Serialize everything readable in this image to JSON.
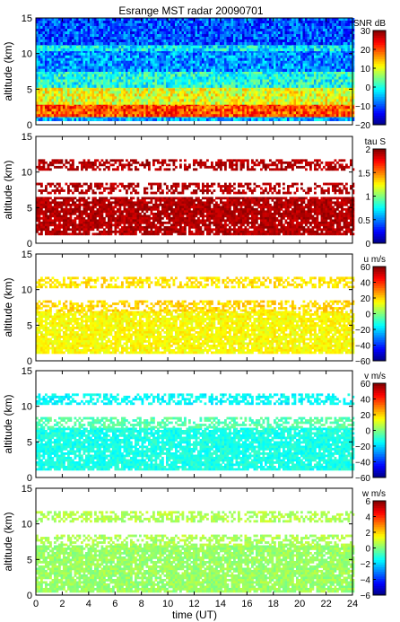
{
  "chart_data": {
    "type": "heatmap",
    "title": "Esrange MST radar 20090701",
    "xlabel": "time (UT)",
    "xlim": [
      0,
      24
    ],
    "xticks": [
      0,
      2,
      4,
      6,
      8,
      10,
      12,
      14,
      16,
      18,
      20,
      22,
      24
    ],
    "panels": [
      {
        "id": "snr",
        "ylabel": "altitude (km)",
        "ylim": [
          0,
          15
        ],
        "yticks": [
          0,
          5,
          10,
          15
        ],
        "colorbar_label": "SNR dB",
        "colorbar_range": [
          -20,
          30
        ],
        "colorbar_ticks": [
          -20,
          -10,
          0,
          10,
          20,
          30
        ],
        "fill": "full",
        "layers": [
          {
            "from_km": 0.6,
            "to_km": 1.3,
            "value": -5
          },
          {
            "from_km": 1.3,
            "to_km": 3.0,
            "value": 20
          },
          {
            "from_km": 3.0,
            "to_km": 5.5,
            "value": 10
          },
          {
            "from_km": 5.5,
            "to_km": 7.5,
            "value": 0
          },
          {
            "from_km": 7.5,
            "to_km": 10.5,
            "value": -7
          },
          {
            "from_km": 10.5,
            "to_km": 11.5,
            "value": -2
          },
          {
            "from_km": 11.5,
            "to_km": 15.0,
            "value": -10
          }
        ]
      },
      {
        "id": "tau",
        "ylabel": "altitude (km)",
        "ylim": [
          0,
          15
        ],
        "yticks": [
          0,
          5,
          10,
          15
        ],
        "colorbar_label": "tau S",
        "colorbar_range": [
          0,
          2
        ],
        "colorbar_ticks": [
          0,
          0.5,
          1,
          1.5,
          2
        ],
        "fill": "sparse",
        "layers": [
          {
            "from_km": 1.2,
            "to_km": 6.5,
            "value": 1.9
          },
          {
            "from_km": 7.0,
            "to_km": 8.5,
            "value": 1.9
          },
          {
            "from_km": 10.5,
            "to_km": 11.8,
            "value": 1.9
          }
        ]
      },
      {
        "id": "u",
        "ylabel": "altitude (km)",
        "ylim": [
          0,
          15
        ],
        "yticks": [
          0,
          5,
          10,
          15
        ],
        "colorbar_label": "u m/s",
        "colorbar_range": [
          -60,
          60
        ],
        "colorbar_ticks": [
          -60,
          -40,
          -20,
          0,
          20,
          40,
          60
        ],
        "fill": "sparse",
        "layers": [
          {
            "from_km": 1.2,
            "to_km": 7.0,
            "value": 15
          },
          {
            "from_km": 7.0,
            "to_km": 8.5,
            "value": 20
          },
          {
            "from_km": 10.3,
            "to_km": 11.8,
            "value": 18
          }
        ]
      },
      {
        "id": "v",
        "ylabel": "altitude (km)",
        "ylim": [
          0,
          15
        ],
        "yticks": [
          0,
          5,
          10,
          15
        ],
        "colorbar_label": "v m/s",
        "colorbar_range": [
          -60,
          60
        ],
        "colorbar_ticks": [
          -60,
          -40,
          -20,
          0,
          20,
          40,
          60
        ],
        "fill": "sparse",
        "layers": [
          {
            "from_km": 1.2,
            "to_km": 7.0,
            "value": -12
          },
          {
            "from_km": 7.0,
            "to_km": 8.5,
            "value": -5
          },
          {
            "from_km": 10.3,
            "to_km": 11.8,
            "value": -15
          }
        ]
      },
      {
        "id": "w",
        "ylabel": "altitude (km)",
        "ylim": [
          0,
          15
        ],
        "yticks": [
          0,
          5,
          10,
          15
        ],
        "colorbar_label": "w m/s",
        "colorbar_range": [
          -6,
          6
        ],
        "colorbar_ticks": [
          -6,
          -4,
          -2,
          0,
          2,
          4,
          6
        ],
        "fill": "sparse",
        "layers": [
          {
            "from_km": 0.5,
            "to_km": 7.0,
            "value": 0.3
          },
          {
            "from_km": 7.0,
            "to_km": 8.5,
            "value": 0.5
          },
          {
            "from_km": 10.3,
            "to_km": 11.8,
            "value": 0.6
          }
        ]
      }
    ]
  }
}
